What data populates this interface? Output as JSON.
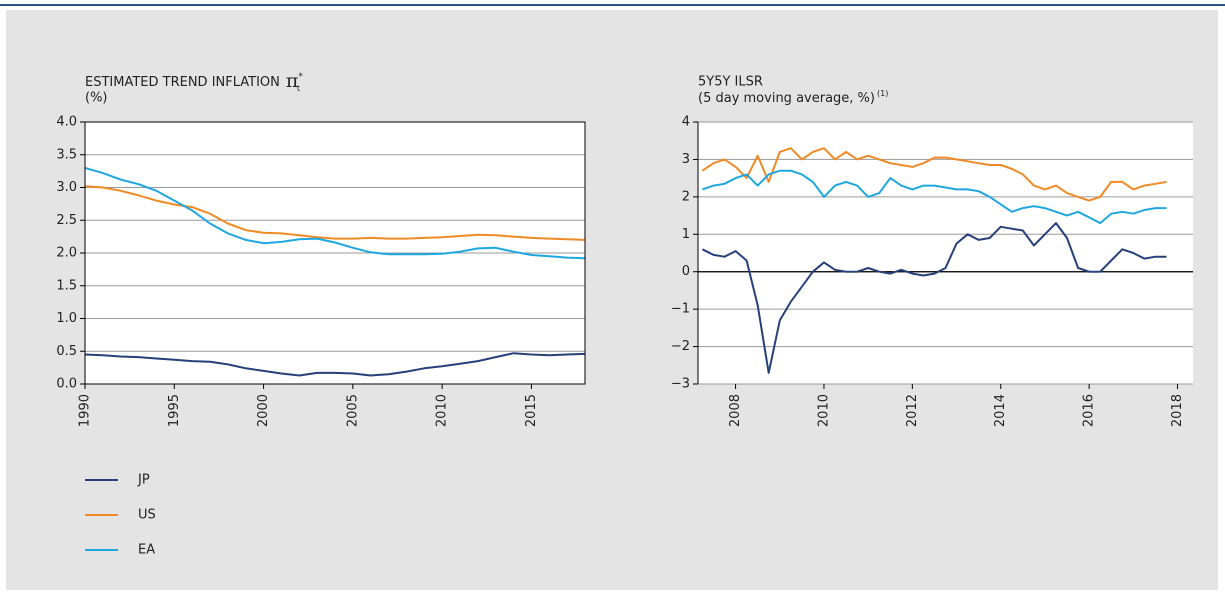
{
  "chart_data": [
    {
      "type": "line",
      "title": "ESTIMATED TREND INFLATION",
      "title_symbol": "π",
      "title_superscript": "*",
      "title_subscript": "t",
      "subtitle": "(%)",
      "x": [
        1990,
        1991,
        1992,
        1993,
        1994,
        1995,
        1996,
        1997,
        1998,
        1999,
        2000,
        2001,
        2002,
        2003,
        2004,
        2005,
        2006,
        2007,
        2008,
        2009,
        2010,
        2011,
        2012,
        2013,
        2014,
        2015,
        2016,
        2017,
        2018
      ],
      "series": [
        {
          "name": "JP",
          "color": "#27407a",
          "values": [
            0.45,
            0.44,
            0.42,
            0.41,
            0.39,
            0.37,
            0.35,
            0.34,
            0.3,
            0.24,
            0.2,
            0.16,
            0.13,
            0.17,
            0.17,
            0.16,
            0.13,
            0.15,
            0.19,
            0.24,
            0.27,
            0.31,
            0.35,
            0.41,
            0.47,
            0.45,
            0.44,
            0.45,
            0.46
          ]
        },
        {
          "name": "US",
          "color": "#f08a24",
          "values": [
            3.02,
            3.0,
            2.95,
            2.88,
            2.8,
            2.74,
            2.7,
            2.6,
            2.45,
            2.35,
            2.31,
            2.3,
            2.27,
            2.24,
            2.22,
            2.22,
            2.23,
            2.22,
            2.22,
            2.23,
            2.24,
            2.26,
            2.28,
            2.27,
            2.25,
            2.23,
            2.22,
            2.21,
            2.2
          ]
        },
        {
          "name": "EA",
          "color": "#1ea7df",
          "values": [
            3.3,
            3.22,
            3.12,
            3.05,
            2.95,
            2.8,
            2.65,
            2.45,
            2.3,
            2.2,
            2.15,
            2.17,
            2.21,
            2.22,
            2.16,
            2.08,
            2.01,
            1.98,
            1.98,
            1.98,
            1.99,
            2.02,
            2.07,
            2.08,
            2.02,
            1.97,
            1.95,
            1.93,
            1.92
          ]
        }
      ],
      "xlim": [
        1990,
        2018
      ],
      "xticks": [
        1990,
        1995,
        2000,
        2005,
        2010,
        2015
      ],
      "ylim": [
        0,
        4
      ],
      "yticks": [
        {
          "value": 0,
          "label": "0.0"
        },
        0.5,
        {
          "value": 1,
          "label": "1.0"
        },
        1.5,
        {
          "value": 2,
          "label": "2.0"
        },
        2.5,
        {
          "value": 3,
          "label": "3.0"
        },
        3.5,
        {
          "value": 4,
          "label": "4.0"
        }
      ],
      "grid": true
    },
    {
      "type": "line",
      "title": "5Y5Y ILSR",
      "subtitle": "(5 day moving average, %)",
      "subtitle_note": "(1)",
      "x": [
        2007.25,
        2007.5,
        2007.75,
        2008,
        2008.25,
        2008.5,
        2008.75,
        2009,
        2009.25,
        2009.5,
        2009.75,
        2010,
        2010.25,
        2010.5,
        2010.75,
        2011,
        2011.25,
        2011.5,
        2011.75,
        2012,
        2012.25,
        2012.5,
        2012.75,
        2013,
        2013.25,
        2013.5,
        2013.75,
        2014,
        2014.25,
        2014.5,
        2014.75,
        2015,
        2015.25,
        2015.5,
        2015.75,
        2016,
        2016.25,
        2016.5,
        2016.75,
        2017,
        2017.25,
        2017.5,
        2017.75
      ],
      "series": [
        {
          "color": "#27407a",
          "values": [
            0.6,
            0.45,
            0.4,
            0.55,
            0.3,
            -0.9,
            -2.7,
            -1.3,
            -0.8,
            -0.4,
            0.0,
            0.25,
            0.05,
            0.0,
            0.0,
            0.1,
            0.0,
            -0.05,
            0.05,
            -0.05,
            -0.1,
            -0.05,
            0.1,
            0.75,
            1.0,
            0.85,
            0.9,
            1.2,
            1.15,
            1.1,
            0.7,
            1.0,
            1.3,
            0.9,
            0.1,
            0.0,
            0.0,
            0.3,
            0.6,
            0.5,
            0.35,
            0.4,
            0.4
          ]
        },
        {
          "color": "#f08a24",
          "values": [
            2.7,
            2.9,
            3.0,
            2.8,
            2.5,
            3.1,
            2.4,
            3.2,
            3.3,
            3.0,
            3.2,
            3.3,
            3.0,
            3.2,
            3.0,
            3.1,
            3.0,
            2.9,
            2.85,
            2.8,
            2.9,
            3.05,
            3.05,
            3.0,
            2.95,
            2.9,
            2.85,
            2.85,
            2.75,
            2.6,
            2.3,
            2.2,
            2.3,
            2.1,
            2.0,
            1.9,
            2.0,
            2.4,
            2.4,
            2.2,
            2.3,
            2.35,
            2.4
          ]
        },
        {
          "color": "#1ea7df",
          "values": [
            2.2,
            2.3,
            2.35,
            2.5,
            2.6,
            2.3,
            2.6,
            2.7,
            2.7,
            2.6,
            2.4,
            2.0,
            2.3,
            2.4,
            2.3,
            2.0,
            2.1,
            2.5,
            2.3,
            2.2,
            2.3,
            2.3,
            2.25,
            2.2,
            2.2,
            2.15,
            2.0,
            1.8,
            1.6,
            1.7,
            1.75,
            1.7,
            1.6,
            1.5,
            1.6,
            1.45,
            1.3,
            1.55,
            1.6,
            1.55,
            1.65,
            1.7,
            1.7
          ]
        }
      ],
      "xlim": [
        2007.15,
        2018.35
      ],
      "xticks": [
        2008,
        2010,
        2012,
        2014,
        2016,
        2018
      ],
      "ylim": [
        -3,
        4
      ],
      "yticks": [
        {
          "value": -3,
          "label": "−3"
        },
        {
          "value": -2,
          "label": "−2"
        },
        {
          "value": -1,
          "label": "−1"
        },
        0,
        1,
        2,
        3,
        4
      ],
      "grid": true,
      "zero_line": true
    }
  ]
}
